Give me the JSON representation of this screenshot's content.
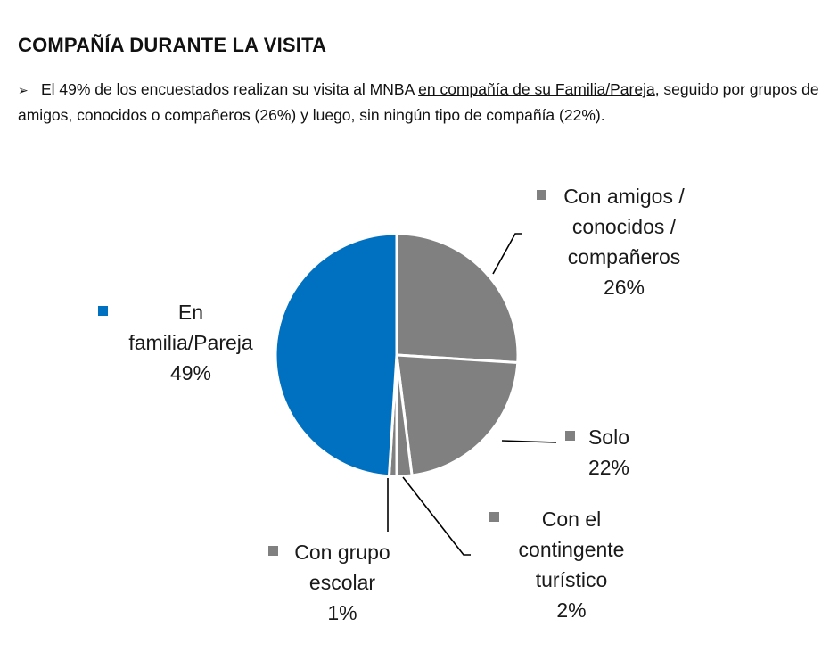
{
  "header": {
    "title": "COMPAÑÍA DURANTE LA VISITA",
    "bullet_glyph": "➢",
    "summary_part1": "El 49% de los encuestados realizan su visita al MNBA ",
    "summary_underlined": "en compañía de su Familia/Pareja",
    "summary_part2": ", seguido por grupos de amigos, conocidos o compañeros (26%) y luego, sin ningún tipo de compañía (22%)."
  },
  "chart_data": {
    "type": "pie",
    "start_angle_deg": 0,
    "direction": "clockwise",
    "slices": [
      {
        "label_lines": [
          "Con amigos /",
          "conocidos /",
          "compañeros"
        ],
        "value_text": "26%",
        "value": 26,
        "color": "#808080"
      },
      {
        "label_lines": [
          "Solo"
        ],
        "value_text": "22%",
        "value": 22,
        "color": "#808080"
      },
      {
        "label_lines": [
          "Con el",
          "contingente",
          "turístico"
        ],
        "value_text": "2%",
        "value": 2,
        "color": "#808080"
      },
      {
        "label_lines": [
          "Con grupo",
          "escolar"
        ],
        "value_text": "1%",
        "value": 1,
        "color": "#808080"
      },
      {
        "label_lines": [
          "En",
          "familia/Pareja"
        ],
        "value_text": "49%",
        "value": 49,
        "color": "#0070c0"
      }
    ]
  }
}
